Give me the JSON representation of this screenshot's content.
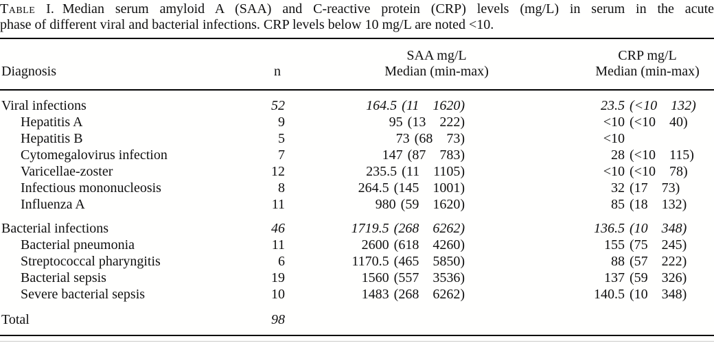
{
  "colors": {
    "background": "#ffffff",
    "text": "#0f0f0f",
    "rule": "#000000"
  },
  "caption": {
    "table_label": "Table",
    "table_num": "I.",
    "line1": "Median serum amyloid A (SAA) and C-reactive protein (CRP) levels (mg/L) in serum in the acute",
    "line2": "phase of different viral and bacterial infections. CRP levels below 10 mg/L are noted <10."
  },
  "header": {
    "diagnosis": "Diagnosis",
    "n": "n",
    "saa_line1": "SAA mg/L",
    "saa_line2": "Median (min-max)",
    "crp_line1": "CRP mg/L",
    "crp_line2": "Median (min-max)"
  },
  "chart_data": {
    "type": "table",
    "title": "Table I. Median serum amyloid A (SAA) and C-reactive protein (CRP) levels (mg/L) in serum in the acute phase of different viral and bacterial infections. CRP levels below 10 mg/L are noted <10.",
    "columns": [
      "Diagnosis",
      "n",
      "SAA mg/L Median (min-max)",
      "CRP mg/L Median (min-max)"
    ]
  },
  "rows": [
    {
      "name": "Viral infections",
      "n": "52",
      "saa_median": "164.5",
      "saa_range": "(11  1620)",
      "crp_median": "23.5",
      "crp_range": "(<10  132)"
    },
    {
      "name": "Hepatitis A",
      "n": "9",
      "saa_median": "95",
      "saa_range": "(13  222)",
      "crp_median": "<10",
      "crp_range": "(<10  40)"
    },
    {
      "name": "Hepatitis B",
      "n": "5",
      "saa_median": "73",
      "saa_range": "(68  73)",
      "crp_median": "<10",
      "crp_range": ""
    },
    {
      "name": "Cytomegalovirus infection",
      "n": "7",
      "saa_median": "147",
      "saa_range": "(87  783)",
      "crp_median": "28",
      "crp_range": "(<10  115)"
    },
    {
      "name": "Varicellae-zoster",
      "n": "12",
      "saa_median": "235.5",
      "saa_range": "(11  1105)",
      "crp_median": "<10",
      "crp_range": "(<10  78)"
    },
    {
      "name": "Infectious mononucleosis",
      "n": "8",
      "saa_median": "264.5",
      "saa_range": "(145  1001)",
      "crp_median": "32",
      "crp_range": "(17  73)"
    },
    {
      "name": "Influenza A",
      "n": "11",
      "saa_median": "980",
      "saa_range": "(59  1620)",
      "crp_median": "85",
      "crp_range": "(18  132)"
    },
    {
      "name": "Bacterial infections",
      "n": "46",
      "saa_median": "1719.5",
      "saa_range": "(268  6262)",
      "crp_median": "136.5",
      "crp_range": "(10  348)"
    },
    {
      "name": "Bacterial pneumonia",
      "n": "11",
      "saa_median": "2600",
      "saa_range": "(618  4260)",
      "crp_median": "155",
      "crp_range": "(75  245)"
    },
    {
      "name": "Streptococcal pharyngitis",
      "n": "6",
      "saa_median": "1170.5",
      "saa_range": "(465  5850)",
      "crp_median": "88",
      "crp_range": "(57  222)"
    },
    {
      "name": "Bacterial sepsis",
      "n": "19",
      "saa_median": "1560",
      "saa_range": "(557  3536)",
      "crp_median": "137",
      "crp_range": "(59  326)"
    },
    {
      "name": "Severe bacterial sepsis",
      "n": "10",
      "saa_median": "1483",
      "saa_range": "(268  6262)",
      "crp_median": "140.5",
      "crp_range": "(10  348)"
    },
    {
      "name": "Total",
      "n": "98",
      "saa_median": "",
      "saa_range": "",
      "crp_median": "",
      "crp_range": ""
    }
  ]
}
